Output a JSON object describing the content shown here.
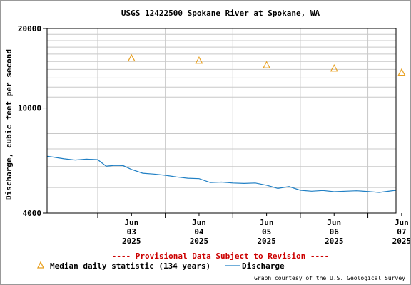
{
  "chart_data": {
    "type": "line",
    "title": "USGS 12422500 Spokane River at Spokane, WA",
    "ylabel": "Discharge, cubic feet per second",
    "xlabel": "",
    "y_scale": "log",
    "ylim": [
      4000,
      20000
    ],
    "y_tick_labels": [
      "20000",
      "10000",
      "4000"
    ],
    "y_minor_ticks": [
      5000,
      6000,
      7000,
      8000,
      9000,
      11000,
      12000,
      13000,
      14000,
      15000,
      16000,
      17000,
      18000,
      19000
    ],
    "xlim": [
      "2025-06-02 06:00",
      "2025-06-07 10:00"
    ],
    "x_ticks": [
      {
        "date": "2025-06-03",
        "month": "Jun",
        "day": "03",
        "year": "2025"
      },
      {
        "date": "2025-06-04",
        "month": "Jun",
        "day": "04",
        "year": "2025"
      },
      {
        "date": "2025-06-05",
        "month": "Jun",
        "day": "05",
        "year": "2025"
      },
      {
        "date": "2025-06-06",
        "month": "Jun",
        "day": "06",
        "year": "2025"
      },
      {
        "date": "2025-06-07",
        "month": "Jun",
        "day": "07",
        "year": "2025"
      }
    ],
    "grid": true,
    "legend_position": "bottom",
    "series": [
      {
        "name": "Median daily statistic (134 years)",
        "kind": "scatter",
        "marker": "triangle",
        "color": "#e8a020",
        "x": [
          "2025-06-03 12:00",
          "2025-06-04 12:00",
          "2025-06-05 12:00",
          "2025-06-06 12:00",
          "2025-06-07 12:00"
        ],
        "y": [
          15400,
          15100,
          14500,
          14100,
          13600
        ]
      },
      {
        "name": "Discharge",
        "kind": "line",
        "color": "#1f7fc4",
        "x": [
          "2025-06-02 06:00",
          "2025-06-02 08:00",
          "2025-06-02 12:00",
          "2025-06-02 16:00",
          "2025-06-02 20:00",
          "2025-06-03 00:00",
          "2025-06-03 03:00",
          "2025-06-03 06:00",
          "2025-06-03 09:00",
          "2025-06-03 12:00",
          "2025-06-03 16:00",
          "2025-06-03 20:00",
          "2025-06-04 00:00",
          "2025-06-04 04:00",
          "2025-06-04 08:00",
          "2025-06-04 12:00",
          "2025-06-04 16:00",
          "2025-06-04 20:00",
          "2025-06-05 00:00",
          "2025-06-05 04:00",
          "2025-06-05 08:00",
          "2025-06-05 12:00",
          "2025-06-05 16:00",
          "2025-06-05 20:00",
          "2025-06-06 00:00",
          "2025-06-06 04:00",
          "2025-06-06 08:00",
          "2025-06-06 12:00",
          "2025-06-06 16:00",
          "2025-06-06 20:00",
          "2025-06-07 00:00",
          "2025-06-07 04:00",
          "2025-06-07 08:00",
          "2025-06-07 10:00"
        ],
        "y": [
          6560,
          6520,
          6420,
          6350,
          6400,
          6370,
          6020,
          6060,
          6050,
          5850,
          5660,
          5620,
          5560,
          5480,
          5420,
          5400,
          5220,
          5240,
          5200,
          5180,
          5200,
          5100,
          4960,
          5040,
          4880,
          4840,
          4870,
          4820,
          4840,
          4860,
          4830,
          4790,
          4850,
          4880
        ]
      }
    ],
    "provisional_note": "---- Provisional Data Subject to Revision ----",
    "credit": "Graph courtesy of the U.S. Geological Survey"
  },
  "colors": {
    "note": "#cc0000",
    "grid": "#c8c8c8",
    "axis": "#000000"
  }
}
